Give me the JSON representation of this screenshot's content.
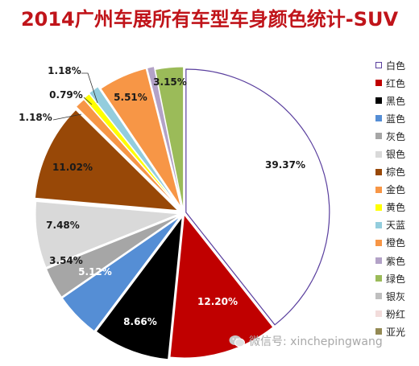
{
  "page_title": "2014广州车展所有车型车身颜色统计-SUV",
  "watermark": "微信号: xinchepingwang",
  "chart_data": {
    "type": "pie",
    "title": "2014广州车展所有车型车身颜色统计-SUV",
    "legend_position": "right",
    "start_angle_deg": 0,
    "direction": "clockwise",
    "slices": [
      {
        "name": "白色",
        "value": 39.37,
        "label": "39.37%",
        "color": "#ffffff",
        "stroke": "#5a3f9e"
      },
      {
        "name": "红色",
        "value": 12.2,
        "label": "12.20%",
        "color": "#c00000"
      },
      {
        "name": "黑色",
        "value": 8.66,
        "label": "8.66%",
        "color": "#000000"
      },
      {
        "name": "蓝色",
        "value": 5.12,
        "label": "5.12%",
        "color": "#558ed5"
      },
      {
        "name": "灰色",
        "value": 3.54,
        "label": "3.54%",
        "color": "#a6a6a6"
      },
      {
        "name": "银色",
        "value": 7.48,
        "label": "7.48%",
        "color": "#d9d9d9"
      },
      {
        "name": "棕色",
        "value": 11.02,
        "label": "11.02%",
        "color": "#984807"
      },
      {
        "name": "金色",
        "value": 1.18,
        "label": "1.18%",
        "color": "#f79646"
      },
      {
        "name": "黄色",
        "value": 0.79,
        "label": "0.79%",
        "color": "#ffff00"
      },
      {
        "name": "天蓝",
        "value": 1.18,
        "label": "1.18%",
        "color": "#93cddd"
      },
      {
        "name": "橙色",
        "value": 5.51,
        "label": "5.51%",
        "color": "#f79646"
      },
      {
        "name": "紫色",
        "value": 0.79,
        "label": "",
        "color": "#b3a2c7"
      },
      {
        "name": "绿色",
        "value": 3.15,
        "label": "3.15%",
        "color": "#9bbb59"
      },
      {
        "name": "银灰",
        "value": 0,
        "label": "",
        "color": "#bfbfbf"
      },
      {
        "name": "粉红",
        "value": 0,
        "label": "",
        "color": "#f2dcdb"
      },
      {
        "name": "亚光",
        "value": 0,
        "label": "",
        "color": "#948a54"
      }
    ]
  }
}
